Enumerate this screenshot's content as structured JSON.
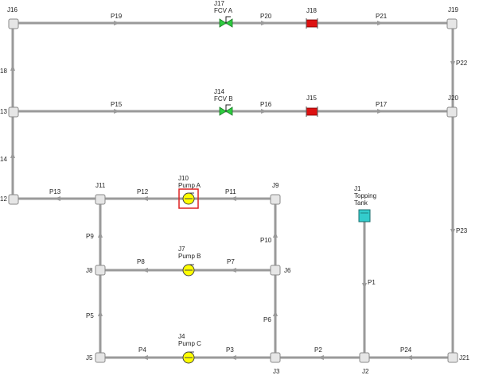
{
  "colors": {
    "pipe": "#9a9a9a",
    "junction_fill": "#e6e6e6",
    "pump_fill": "#ffff00",
    "valve_fill": "#2ecc40",
    "heat_exchanger_fill": "#dd1111",
    "tank_fill": "#33cccc",
    "selection": "#dd2222"
  },
  "labels": {
    "J16": "J16",
    "J17": "J17",
    "FCV_A": "FCV A",
    "J18": "J18",
    "J19": "J19",
    "J13": "13",
    "J14": "J14",
    "FCV_B": "FCV B",
    "J15": "J15",
    "J20": "J20",
    "J12": "12",
    "J11": "J11",
    "J10": "J10",
    "Pump_A": "Pump A",
    "J9": "J9",
    "J1": "J1",
    "Topping": "Topping",
    "Tank": "Tank",
    "J8": "J8",
    "J7": "J7",
    "Pump_B": "Pump B",
    "J6": "J6",
    "J5": "J5",
    "J4": "J4",
    "Pump_C": "Pump C",
    "J3": "J3",
    "J2": "J2",
    "J21": "J21",
    "P19": "P19",
    "P20": "P20",
    "P21": "P21",
    "P22": "P22",
    "P15": "P15",
    "P16": "P16",
    "P17": "P17",
    "P18": "18",
    "P14": "14",
    "P13": "P13",
    "P12": "P12",
    "P11": "P11",
    "P10": "P10",
    "P9": "P9",
    "P8": "P8",
    "P7": "P7",
    "P6": "P6",
    "P5": "P5",
    "P4": "P4",
    "P3": "P3",
    "P2": "P2",
    "P24": "P24",
    "P23": "P23",
    "P1": "P1"
  }
}
